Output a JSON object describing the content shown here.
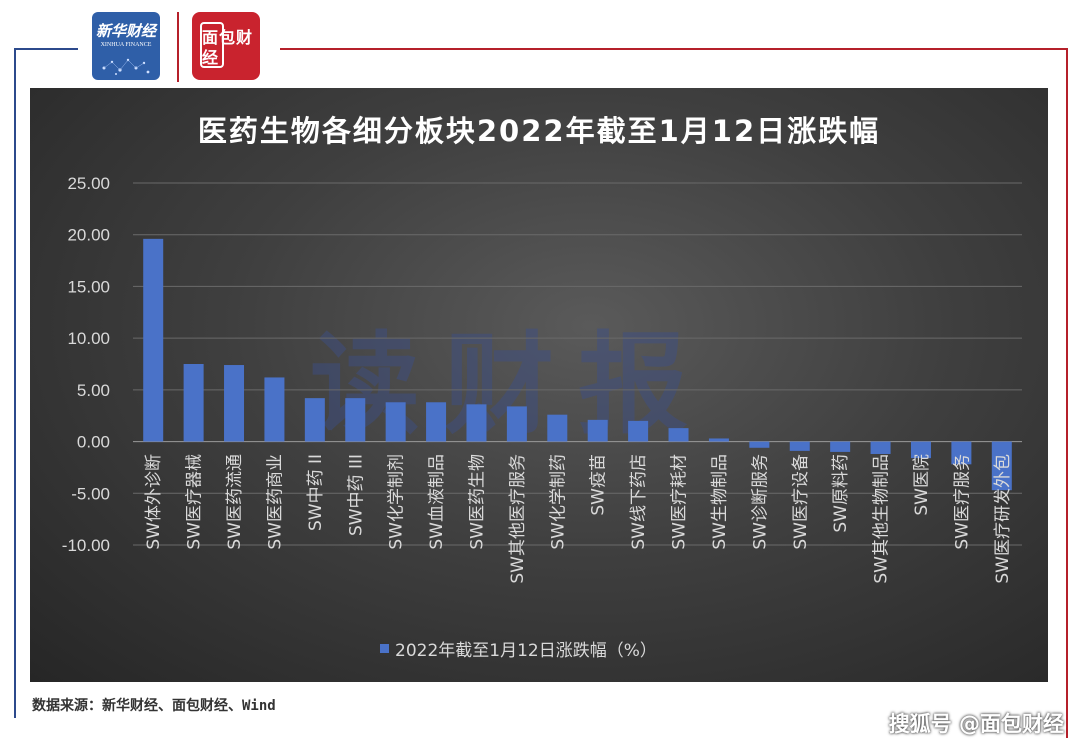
{
  "header": {
    "logo_xinhua_cn": "新华财经",
    "logo_xinhua_en": "XINHUA FINANCE",
    "logo_mianbao": "面包财经"
  },
  "watermark": "读财报",
  "colors": {
    "bar": "#4a72c8",
    "frame_left": "#2c4a8c",
    "frame_right": "#b5202a"
  },
  "chart_data": {
    "type": "bar",
    "title": "医药生物各细分板块2022年截至1月12日涨跌幅",
    "categories": [
      "SW体外诊断",
      "SW医疗器械",
      "SW医药流通",
      "SW医药商业",
      "SW中药 II",
      "SW中药 III",
      "SW化学制剂",
      "SW血液制品",
      "SW医药生物",
      "SW其他医疗服务",
      "SW化学制药",
      "SW疫苗",
      "SW线下药店",
      "SW医疗耗材",
      "SW生物制品",
      "SW诊断服务",
      "SW医疗设备",
      "SW原料药",
      "SW其他生物制品",
      "SW医院",
      "SW医疗服务",
      "SW医疗研发外包"
    ],
    "series": [
      {
        "name": "2022年截至1月12日涨跌幅（%）",
        "values": [
          19.6,
          7.5,
          7.4,
          6.2,
          4.2,
          4.2,
          3.8,
          3.8,
          3.6,
          3.4,
          2.6,
          2.1,
          2.0,
          1.3,
          0.3,
          -0.6,
          -0.9,
          -1.0,
          -1.2,
          -1.6,
          -2.2,
          -4.7
        ]
      }
    ],
    "ylim": [
      -10,
      25
    ],
    "yticks": [
      "25.00",
      "20.00",
      "15.00",
      "10.00",
      "5.00",
      "0.00",
      "-5.00",
      "-10.00"
    ],
    "ytick_values": [
      25,
      20,
      15,
      10,
      5,
      0,
      -5,
      -10
    ],
    "grid": true,
    "legend_position": "bottom",
    "xlabel": "",
    "ylabel": ""
  },
  "footer": {
    "source": "数据来源：新华财经、面包财经、Wind",
    "credit": "搜狐号 @面包财经"
  }
}
